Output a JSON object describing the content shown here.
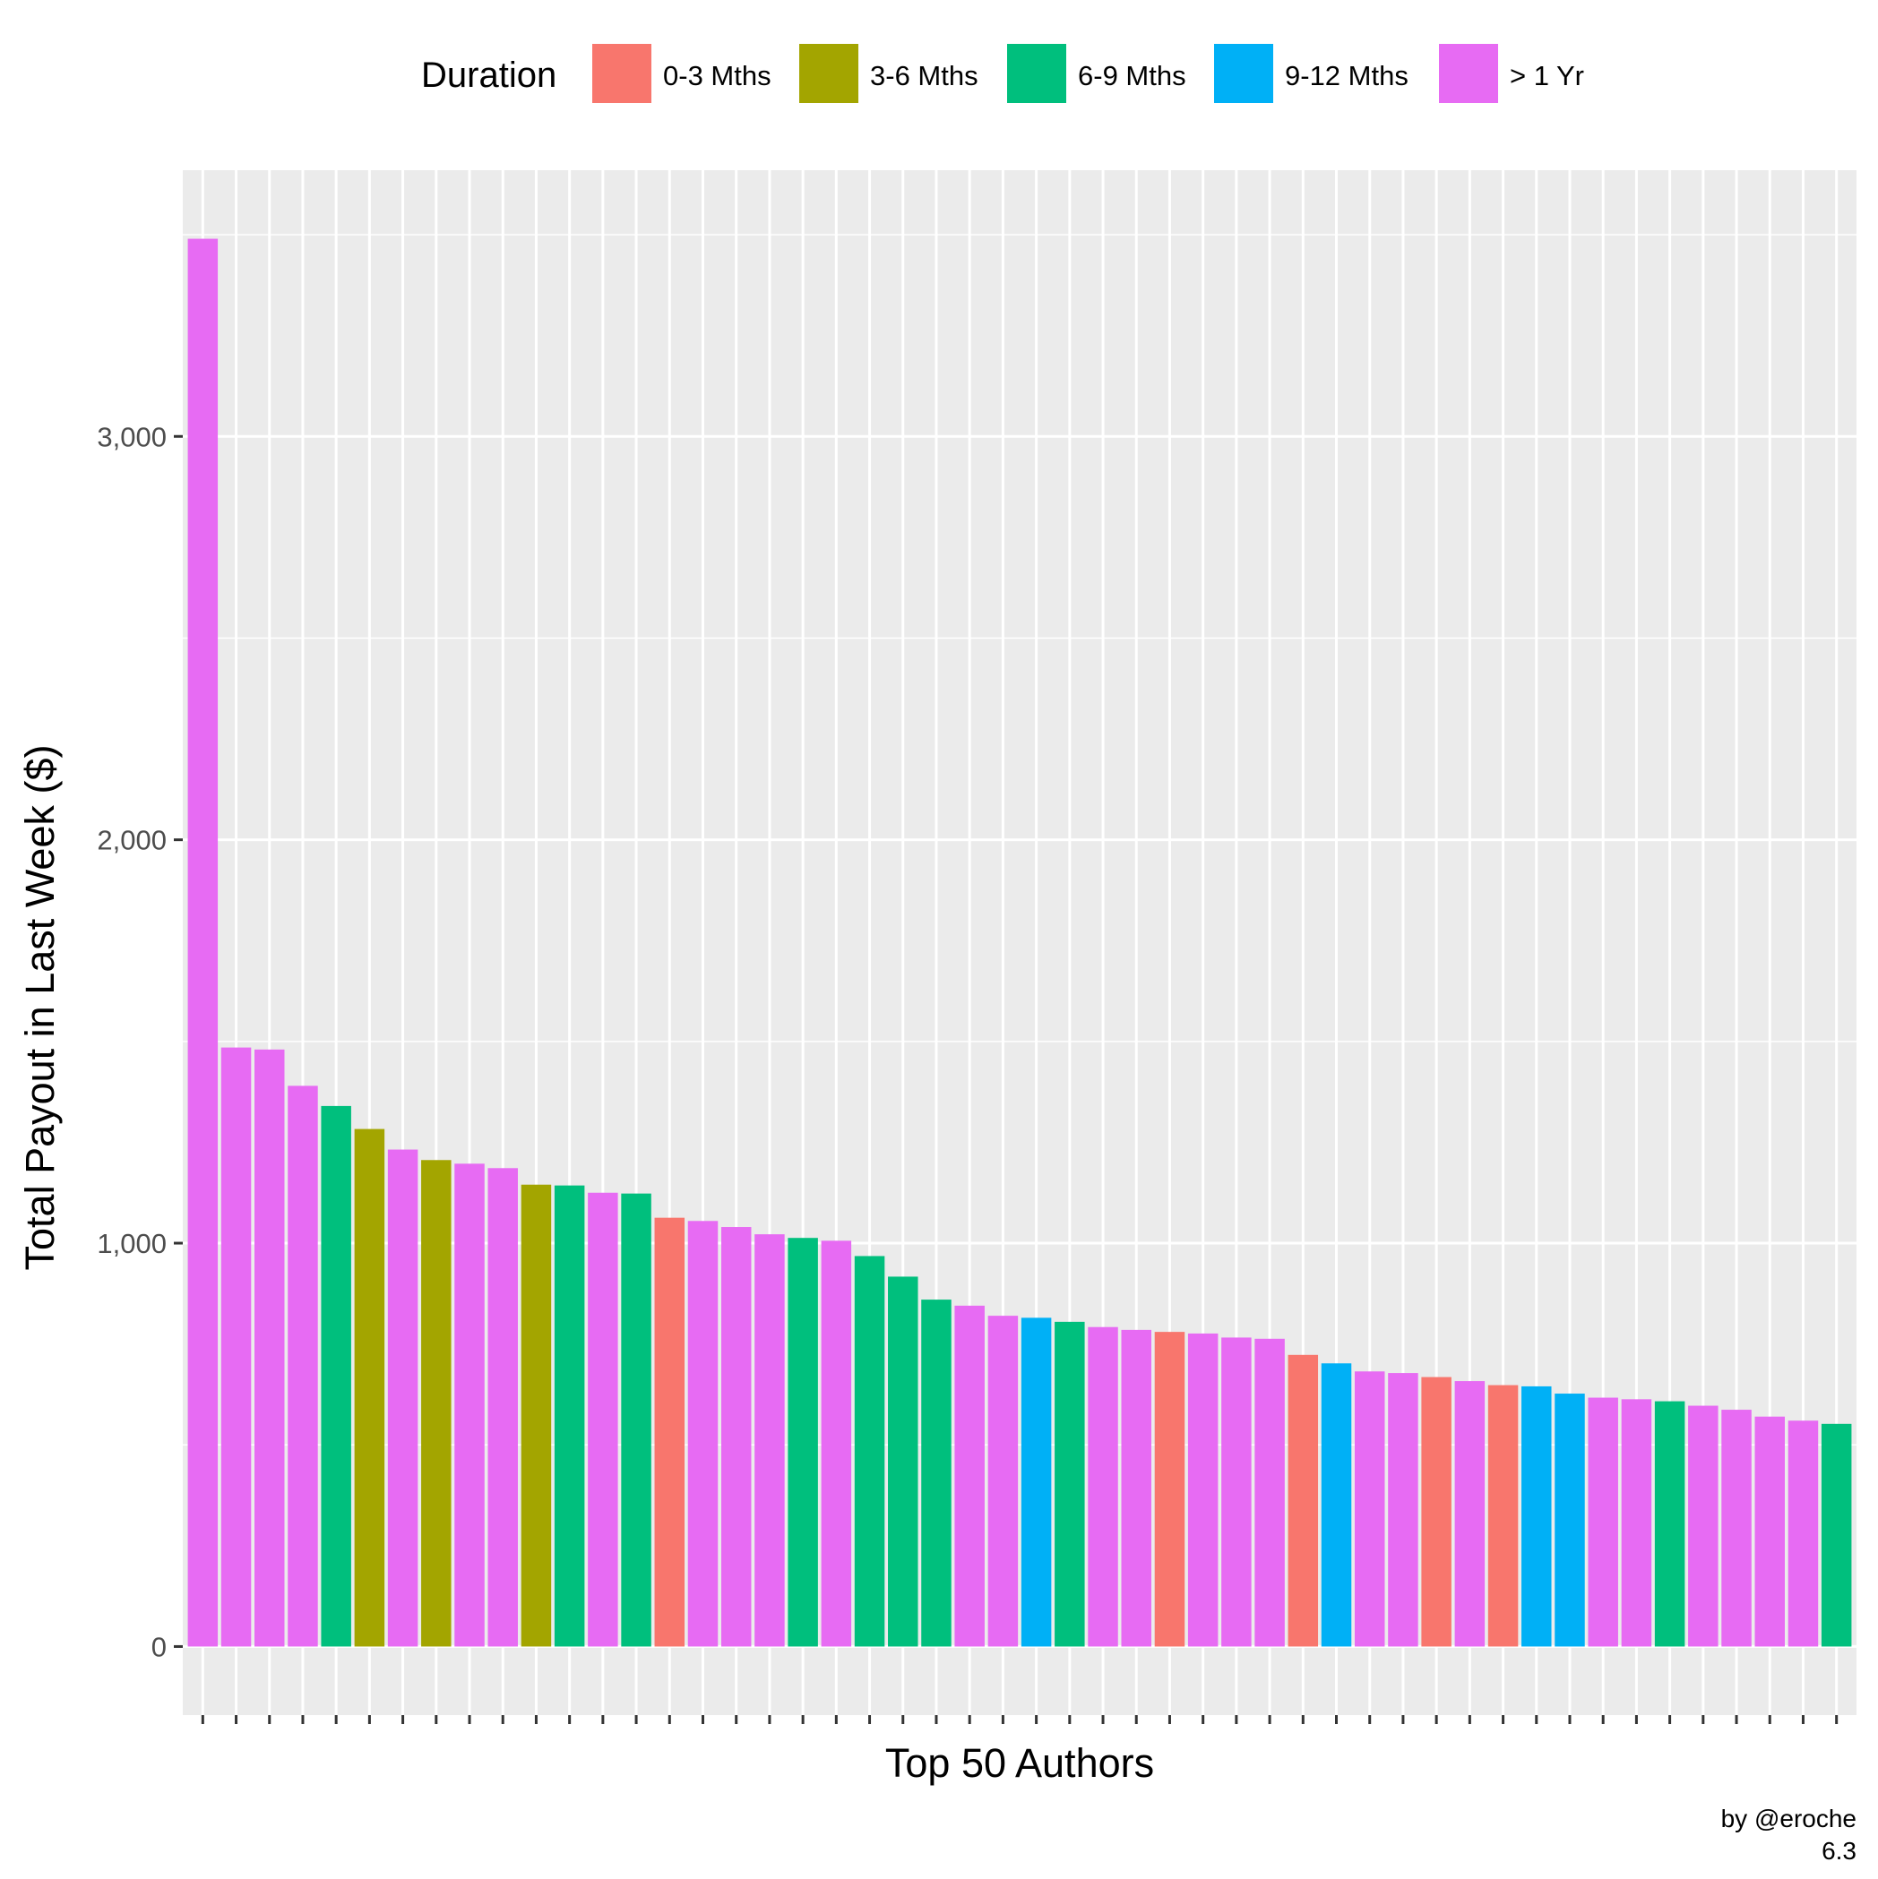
{
  "chart_data": {
    "type": "bar",
    "title": "",
    "xlabel": "Top 50 Authors",
    "ylabel": "Total Payout in Last Week  ($)",
    "ylim": [
      -170,
      3660
    ],
    "yticks": [
      0,
      1000,
      2000,
      3000
    ],
    "ytick_labels": [
      "0",
      "1,000",
      "2,000",
      "3,000"
    ],
    "grid": true,
    "legend": {
      "title": "Duration",
      "placement": "top",
      "entries": [
        {
          "label": "0-3 Mths",
          "color": "#F8766D"
        },
        {
          "label": "3-6 Mths",
          "color": "#A3A500"
        },
        {
          "label": "6-9 Mths",
          "color": "#00BF7D"
        },
        {
          "label": "9-12 Mths",
          "color": "#00B0F6"
        },
        {
          "label": "> 1 Yr",
          "color": "#E76BF3"
        }
      ]
    },
    "values": [
      3490,
      1485,
      1480,
      1390,
      1340,
      1283,
      1232,
      1206,
      1197,
      1186,
      1145,
      1143,
      1125,
      1123,
      1063,
      1055,
      1040,
      1022,
      1013,
      1006,
      968,
      917,
      860,
      845,
      820,
      815,
      805,
      792,
      785,
      780,
      776,
      766,
      763,
      723,
      702,
      682,
      678,
      668,
      658,
      648,
      645,
      627,
      617,
      613,
      608,
      597,
      587,
      570,
      560,
      552
    ],
    "groups": [
      "> 1 Yr",
      "> 1 Yr",
      "> 1 Yr",
      "> 1 Yr",
      "6-9 Mths",
      "3-6 Mths",
      "> 1 Yr",
      "3-6 Mths",
      "> 1 Yr",
      "> 1 Yr",
      "3-6 Mths",
      "6-9 Mths",
      "> 1 Yr",
      "6-9 Mths",
      "0-3 Mths",
      "> 1 Yr",
      "> 1 Yr",
      "> 1 Yr",
      "6-9 Mths",
      "> 1 Yr",
      "6-9 Mths",
      "6-9 Mths",
      "6-9 Mths",
      "> 1 Yr",
      "> 1 Yr",
      "9-12 Mths",
      "6-9 Mths",
      "> 1 Yr",
      "> 1 Yr",
      "0-3 Mths",
      "> 1 Yr",
      "> 1 Yr",
      "> 1 Yr",
      "0-3 Mths",
      "9-12 Mths",
      "> 1 Yr",
      "> 1 Yr",
      "0-3 Mths",
      "> 1 Yr",
      "0-3 Mths",
      "9-12 Mths",
      "9-12 Mths",
      "> 1 Yr",
      "> 1 Yr",
      "6-9 Mths",
      "> 1 Yr",
      "> 1 Yr",
      "> 1 Yr",
      "> 1 Yr",
      "6-9 Mths"
    ],
    "panel_background": "#EBEBEB",
    "grid_color": "#FFFFFF",
    "caption": [
      "by @eroche",
      "6.3"
    ]
  }
}
